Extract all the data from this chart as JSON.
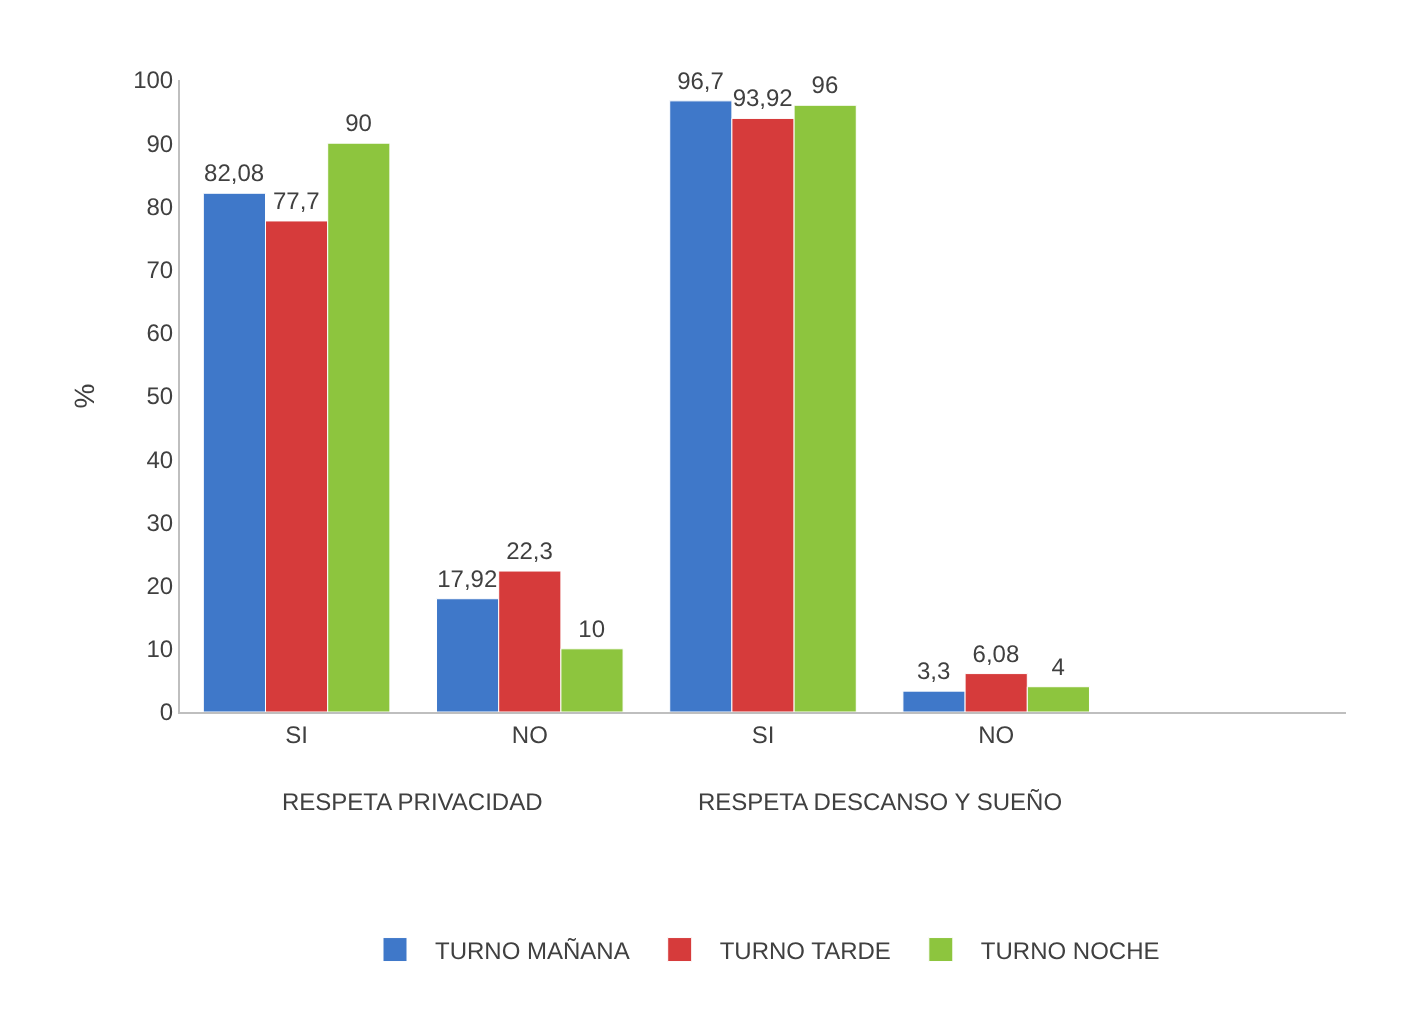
{
  "chart_data": {
    "type": "bar",
    "ylabel": "%",
    "categories": [
      "SI",
      "NO",
      "SI",
      "NO",
      null
    ],
    "series": [
      {
        "name": "TURNO MAÑANA",
        "color": "#3f78c9",
        "values": [
          82.08,
          17.92,
          96.7,
          3.3,
          null
        ],
        "value_labels": [
          "82,08",
          "17,92",
          "96,7",
          "3,3",
          null
        ]
      },
      {
        "name": "TURNO TARDE",
        "color": "#d63b3b",
        "values": [
          77.7,
          22.3,
          93.92,
          6.08,
          null
        ],
        "value_labels": [
          "77,7",
          "22,3",
          "93,92",
          "6,08",
          null
        ]
      },
      {
        "name": "TURNO NOCHE",
        "color": "#8dc53e",
        "values": [
          90,
          10,
          96,
          4,
          null
        ],
        "value_labels": [
          "90",
          "10",
          "96",
          "4",
          null
        ]
      }
    ],
    "annotations": [
      "RESPETA PRIVACIDAD",
      "RESPETA DESCANSO Y SUEÑO"
    ],
    "ylim": [
      0,
      100
    ],
    "yticks": [
      0,
      10,
      20,
      30,
      40,
      50,
      60,
      70,
      80,
      90,
      100
    ],
    "grid": false,
    "legend": "bottom"
  }
}
